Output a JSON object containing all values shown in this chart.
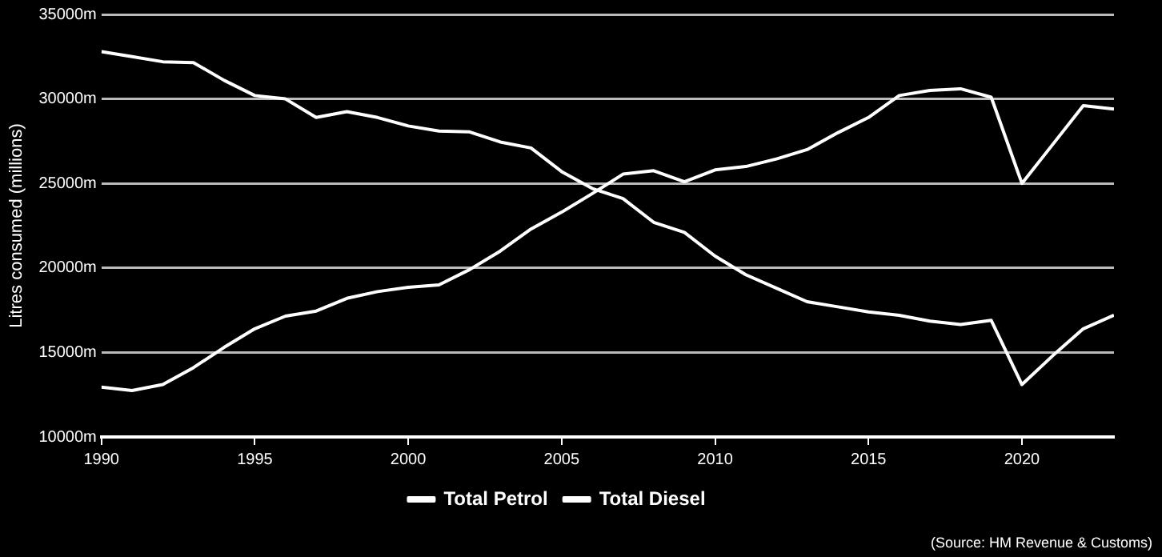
{
  "chart_data": {
    "type": "line",
    "ylabel": "Litres consumed (millions)",
    "x": [
      1990,
      1991,
      1992,
      1993,
      1994,
      1995,
      1996,
      1997,
      1998,
      1999,
      2000,
      2001,
      2002,
      2003,
      2004,
      2005,
      2006,
      2007,
      2008,
      2009,
      2010,
      2011,
      2012,
      2013,
      2014,
      2015,
      2016,
      2017,
      2018,
      2019,
      2020,
      2021,
      2022,
      2023
    ],
    "series": [
      {
        "name": "Total Petrol",
        "color": "#ffffff",
        "values": [
          32800,
          32500,
          32200,
          32150,
          31100,
          30200,
          30000,
          28900,
          29250,
          28900,
          28400,
          28100,
          28050,
          27450,
          27100,
          25700,
          24700,
          24100,
          22700,
          22100,
          20700,
          19600,
          18800,
          18000,
          17700,
          17400,
          17200,
          16850,
          16650,
          16900,
          13100,
          14800,
          16400,
          17200
        ]
      },
      {
        "name": "Total Diesel",
        "color": "#ffffff",
        "values": [
          12950,
          12750,
          13100,
          14100,
          15300,
          16400,
          17150,
          17450,
          18200,
          18600,
          18850,
          19000,
          19900,
          21000,
          22300,
          23300,
          24400,
          25550,
          25750,
          25100,
          25800,
          26000,
          26450,
          27000,
          28000,
          28900,
          30200,
          30500,
          30600,
          30100,
          25000,
          27300,
          29600,
          29400
        ]
      }
    ],
    "xlim": [
      1990,
      2023
    ],
    "xticks": [
      1990,
      1995,
      2000,
      2005,
      2010,
      2015,
      2020
    ],
    "ylim": [
      10000,
      35000
    ],
    "yticks": [
      {
        "value": 10000,
        "label": "10000m"
      },
      {
        "value": 15000,
        "label": "15000m"
      },
      {
        "value": 20000,
        "label": "20000m"
      },
      {
        "value": 25000,
        "label": "25000m"
      },
      {
        "value": 30000,
        "label": "30000m"
      },
      {
        "value": 35000,
        "label": "35000m"
      }
    ],
    "grid": "y",
    "legend": "bottom",
    "marker": "none",
    "line_style": "solid",
    "annotations": [
      "(Source: HM Revenue & Customs)"
    ]
  }
}
